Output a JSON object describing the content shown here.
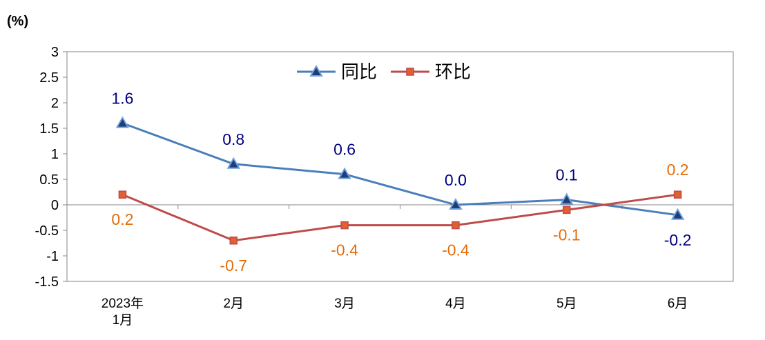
{
  "chart_data": {
    "type": "line",
    "unit_label": "(%)",
    "categories": [
      [
        "2023年",
        "1月"
      ],
      [
        "2月"
      ],
      [
        "3月"
      ],
      [
        "4月"
      ],
      [
        "5月"
      ],
      [
        "6月"
      ]
    ],
    "ylim": [
      -1.5,
      3
    ],
    "yticks": [
      "3",
      "2.5",
      "2",
      "1.5",
      "1",
      "0.5",
      "0",
      "-0.5",
      "-1",
      "-1.5"
    ],
    "ytick_values": [
      3,
      2.5,
      2,
      1.5,
      1,
      0.5,
      0,
      -0.5,
      -1,
      -1.5
    ],
    "grid": false,
    "legend_position": "top-center",
    "series": [
      {
        "name": "同比",
        "color": "#4a7ebb",
        "label_color": "#000080",
        "marker": "triangle",
        "values": [
          1.6,
          0.8,
          0.6,
          0.0,
          0.1,
          -0.2
        ],
        "labels": [
          "1.6",
          "0.8",
          "0.6",
          "0.0",
          "0.1",
          "-0.2"
        ]
      },
      {
        "name": "环比",
        "color": "#be4b48",
        "label_color": "#e46c0a",
        "marker": "square",
        "values": [
          0.2,
          -0.7,
          -0.4,
          -0.4,
          -0.1,
          0.2
        ],
        "labels": [
          "0.2",
          "-0.7",
          "-0.4",
          "-0.4",
          "-0.1",
          "0.2"
        ]
      }
    ]
  }
}
